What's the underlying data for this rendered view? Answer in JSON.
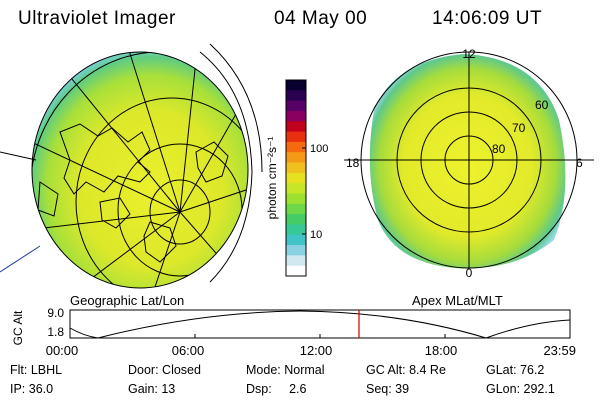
{
  "header": {
    "instrument": "Ultraviolet Imager",
    "date": "04 May 00",
    "time": "14:06:09 UT"
  },
  "geo_panel": {
    "label": "Geographic Lat/Lon"
  },
  "apex_panel": {
    "label": "Apex MLat/MLT",
    "mlt_labels": [
      "12",
      "18",
      "6",
      "0"
    ],
    "lat_labels": [
      "60",
      "70",
      "80"
    ]
  },
  "colorbar": {
    "unit_label": "photon cm⁻²s⁻¹",
    "ticks": [
      "100",
      "10"
    ],
    "colors": [
      "#0a0030",
      "#2a0050",
      "#580066",
      "#8a0060",
      "#c0001c",
      "#e83010",
      "#f56a10",
      "#f59a18",
      "#f0c020",
      "#e6e020",
      "#c8e628",
      "#9ee032",
      "#6ed848",
      "#46cc66",
      "#38c898",
      "#40c4c8",
      "#8ad2e2",
      "#d0e8f0",
      "#ffffff"
    ]
  },
  "altitude_plot": {
    "axis_label": "GC Alt",
    "y_ticks": [
      "9.0",
      "1.8"
    ],
    "x_ticks": [
      "00:00",
      "06:00",
      "12:00",
      "18:00",
      "23:59"
    ],
    "current_time_marker": "14:06"
  },
  "info": {
    "row1": [
      "Flt: LBHL",
      "Door: Closed",
      "Mode: Normal",
      "GC Alt: 8.4 Re",
      "GLat: 76.2"
    ],
    "row2": [
      "IP: 36.0",
      "Gain: 13",
      "Dsp:     2.6",
      "Seq: 39",
      "GLon: 292.1"
    ]
  }
}
